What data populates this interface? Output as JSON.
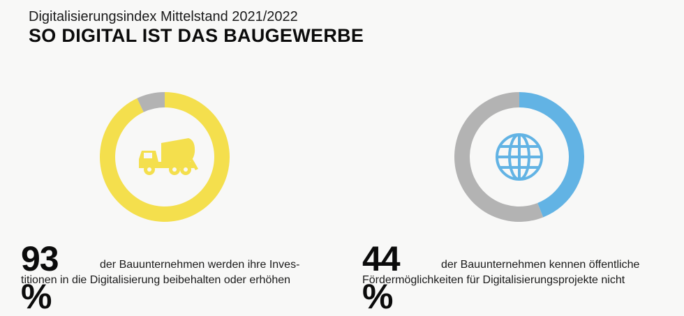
{
  "header": {
    "subtitle": "Digitalisierungsindex Mittelstand 2021/2022",
    "title": "SO DIGITAL IST DAS BAUGEWERBE"
  },
  "chart_data": [
    {
      "type": "pie",
      "values": [
        93,
        7
      ],
      "colors": [
        "#f4df4d",
        "#b3b3b3"
      ],
      "icon": "cement-mixer-truck-icon",
      "value_label": "93 %",
      "caption_line1": "der Bauunternehmen werden ihre Inves-",
      "caption_line2": "titionen in die Digitalisierung beibehalten oder erhöhen"
    },
    {
      "type": "pie",
      "values": [
        44,
        56
      ],
      "colors": [
        "#62b3e4",
        "#b3b3b3"
      ],
      "icon": "globe-icon",
      "value_label": "44 %",
      "caption_line1": "der Bauunternehmen kennen öffentliche",
      "caption_line2": "Fördermöglichkeiten für Digitalisierungsprojekte nicht"
    }
  ]
}
